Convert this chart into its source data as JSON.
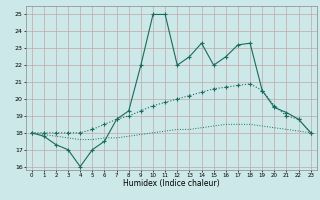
{
  "xlabel": "Humidex (Indice chaleur)",
  "x": [
    0,
    1,
    2,
    3,
    4,
    5,
    6,
    7,
    8,
    9,
    10,
    11,
    12,
    13,
    14,
    15,
    16,
    17,
    18,
    19,
    20,
    21,
    22,
    23
  ],
  "line1": [
    18,
    17.8,
    17.3,
    17.0,
    16.0,
    17.0,
    17.5,
    18.8,
    19.3,
    22.0,
    25.0,
    25.0,
    22.0,
    22.5,
    23.3,
    22.0,
    22.5,
    23.2,
    23.3,
    20.5,
    19.5,
    19.2,
    18.8,
    18.0
  ],
  "line2": [
    18.0,
    18.0,
    18.0,
    18.0,
    18.0,
    18.2,
    18.5,
    18.8,
    19.0,
    19.3,
    19.6,
    19.8,
    20.0,
    20.2,
    20.4,
    20.6,
    20.7,
    20.8,
    20.9,
    20.5,
    19.6,
    19.0,
    18.8,
    18.0
  ],
  "line3": [
    18.0,
    17.9,
    17.8,
    17.7,
    17.6,
    17.6,
    17.7,
    17.7,
    17.8,
    17.9,
    18.0,
    18.1,
    18.2,
    18.2,
    18.3,
    18.4,
    18.5,
    18.5,
    18.5,
    18.4,
    18.3,
    18.2,
    18.1,
    18.0
  ],
  "xlim": [
    -0.5,
    23.5
  ],
  "ylim": [
    15.8,
    25.5
  ],
  "yticks": [
    16,
    17,
    18,
    19,
    20,
    21,
    22,
    23,
    24,
    25
  ],
  "xticks": [
    0,
    1,
    2,
    3,
    4,
    5,
    6,
    7,
    8,
    9,
    10,
    11,
    12,
    13,
    14,
    15,
    16,
    17,
    18,
    19,
    20,
    21,
    22,
    23
  ],
  "bg_color": "#cce8e8",
  "line_color": "#1a6b5a",
  "grid_color": "#c0a8a8"
}
